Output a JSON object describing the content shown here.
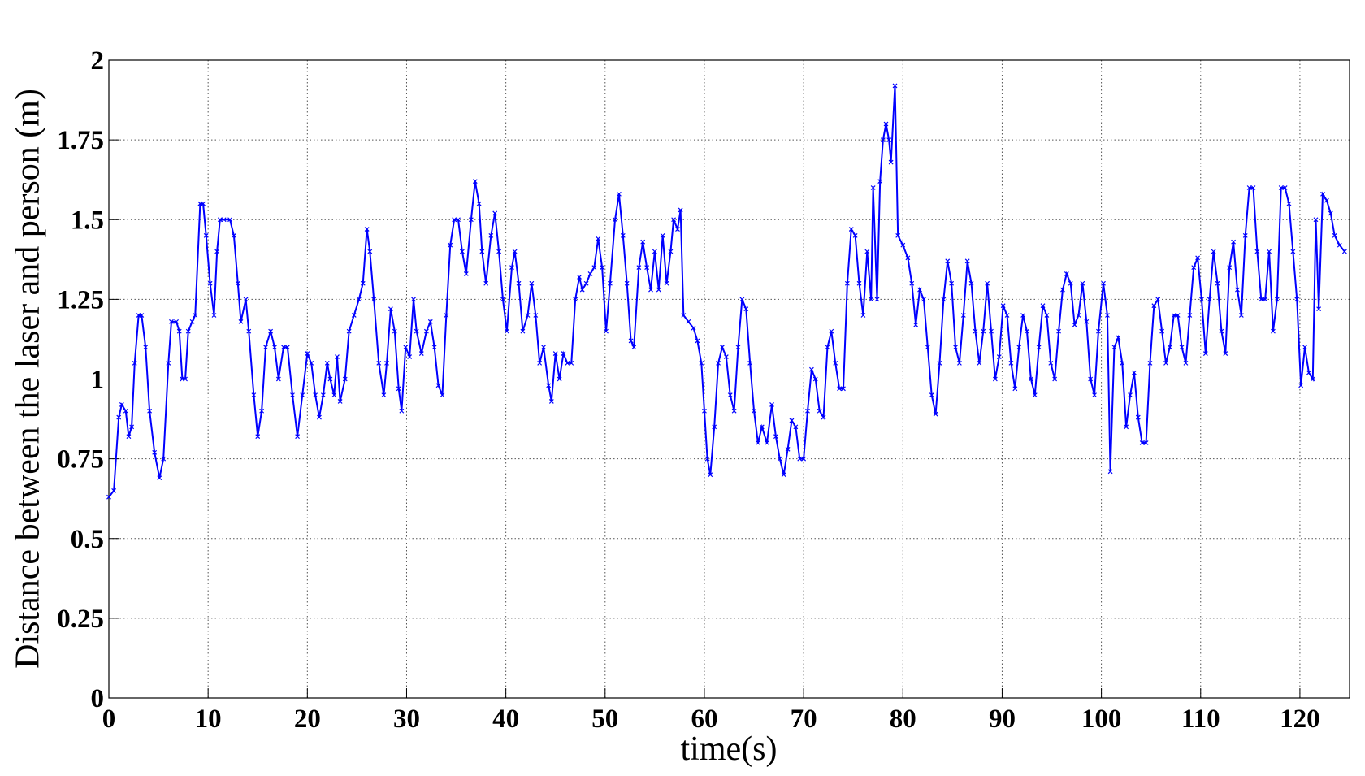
{
  "chart_data": {
    "type": "line",
    "x_label": "time(s)",
    "y_label": "Distance between the laser and person (m)",
    "xlim": [
      0,
      125
    ],
    "ylim": [
      0,
      2
    ],
    "xticks": [
      0,
      10,
      20,
      30,
      40,
      50,
      60,
      70,
      80,
      90,
      100,
      110,
      120
    ],
    "yticks": [
      0,
      0.25,
      0.5,
      0.75,
      1,
      1.25,
      1.5,
      1.75,
      2
    ],
    "grid": true,
    "series": [
      {
        "color": "#0000ff",
        "x": [
          0,
          0.5,
          1,
          1.3,
          1.7,
          2,
          2.3,
          2.6,
          3,
          3.3,
          3.7,
          4.1,
          4.6,
          5.1,
          5.5,
          6,
          6.3,
          6.8,
          7.1,
          7.4,
          7.7,
          8,
          8.4,
          8.7,
          9.2,
          9.5,
          9.8,
          10.2,
          10.6,
          10.9,
          11.2,
          11.6,
          12.2,
          12.6,
          13,
          13.3,
          13.8,
          14.1,
          14.6,
          15,
          15.4,
          15.8,
          16.3,
          16.7,
          17.1,
          17.6,
          18,
          18.5,
          19,
          19.5,
          20,
          20.4,
          20.8,
          21.2,
          21.6,
          22,
          22.3,
          22.7,
          23,
          23.3,
          23.8,
          24.2,
          24.7,
          25.2,
          25.6,
          26,
          26.3,
          26.7,
          27.2,
          27.7,
          28,
          28.4,
          28.8,
          29.2,
          29.5,
          29.9,
          30.3,
          30.7,
          31,
          31.5,
          32,
          32.4,
          32.8,
          33.2,
          33.6,
          34,
          34.4,
          34.8,
          35.2,
          35.6,
          36,
          36.5,
          36.9,
          37.3,
          37.6,
          38,
          38.5,
          38.9,
          39.3,
          39.7,
          40.1,
          40.6,
          40.9,
          41.3,
          41.7,
          42.2,
          42.6,
          43,
          43.4,
          43.8,
          44.3,
          44.6,
          45,
          45.4,
          45.8,
          46.2,
          46.6,
          47,
          47.4,
          47.7,
          48.1,
          48.5,
          48.9,
          49.3,
          49.7,
          50.1,
          50.5,
          51,
          51.4,
          51.8,
          52.2,
          52.6,
          52.9,
          53.4,
          53.8,
          54.2,
          54.6,
          55,
          55.4,
          55.8,
          56.2,
          56.6,
          56.9,
          57.3,
          57.6,
          57.9,
          58.4,
          58.9,
          59.3,
          59.7,
          60,
          60.3,
          60.6,
          61,
          61.4,
          61.8,
          62.2,
          62.6,
          63,
          63.4,
          63.8,
          64.2,
          64.6,
          65,
          65.4,
          65.8,
          66.3,
          66.8,
          67.2,
          67.6,
          68,
          68.4,
          68.8,
          69.2,
          69.6,
          70,
          70.4,
          70.8,
          71.2,
          71.6,
          72,
          72.4,
          72.8,
          73.2,
          73.6,
          74,
          74.4,
          74.8,
          75.2,
          75.6,
          76,
          76.4,
          76.8,
          77,
          77.4,
          77.7,
          78,
          78.3,
          78.6,
          78.8,
          79.2,
          79.5,
          80,
          80.5,
          80.9,
          81.3,
          81.7,
          82.1,
          82.5,
          82.9,
          83.3,
          83.7,
          84.1,
          84.5,
          84.9,
          85.3,
          85.7,
          86.1,
          86.5,
          86.9,
          87.3,
          87.7,
          88.1,
          88.5,
          88.9,
          89.3,
          89.7,
          90.1,
          90.5,
          90.9,
          91.3,
          91.7,
          92.1,
          92.5,
          92.9,
          93.3,
          93.7,
          94.1,
          94.5,
          94.9,
          95.3,
          95.7,
          96.1,
          96.5,
          96.9,
          97.3,
          97.7,
          98.1,
          98.5,
          98.9,
          99.3,
          99.7,
          100.2,
          100.6,
          100.9,
          101.3,
          101.7,
          102.1,
          102.5,
          102.9,
          103.3,
          103.7,
          104.1,
          104.5,
          104.9,
          105.3,
          105.7,
          106.1,
          106.5,
          106.9,
          107.3,
          107.7,
          108.1,
          108.5,
          108.9,
          109.3,
          109.7,
          110.1,
          110.5,
          110.9,
          111.3,
          111.7,
          112.1,
          112.5,
          112.9,
          113.3,
          113.7,
          114.1,
          114.5,
          114.9,
          115.3,
          115.7,
          116.1,
          116.5,
          116.9,
          117.3,
          117.7,
          118.1,
          118.5,
          118.9,
          119.3,
          119.7,
          120.1,
          120.5,
          120.9,
          121.3,
          121.6,
          121.9,
          122.3,
          122.7,
          123.1,
          123.5,
          124,
          124.5
        ],
        "values": [
          0.63,
          0.65,
          0.88,
          0.92,
          0.9,
          0.82,
          0.85,
          1.05,
          1.2,
          1.2,
          1.1,
          0.9,
          0.77,
          0.69,
          0.75,
          1.05,
          1.18,
          1.18,
          1.15,
          1.0,
          1.0,
          1.15,
          1.18,
          1.2,
          1.55,
          1.55,
          1.45,
          1.3,
          1.2,
          1.4,
          1.5,
          1.5,
          1.5,
          1.45,
          1.3,
          1.18,
          1.25,
          1.15,
          0.95,
          0.82,
          0.9,
          1.1,
          1.15,
          1.1,
          1.0,
          1.1,
          1.1,
          0.95,
          0.82,
          0.95,
          1.08,
          1.05,
          0.95,
          0.88,
          0.95,
          1.05,
          1.0,
          0.95,
          1.07,
          0.93,
          1.0,
          1.15,
          1.2,
          1.25,
          1.3,
          1.47,
          1.4,
          1.25,
          1.05,
          0.95,
          1.05,
          1.22,
          1.15,
          0.97,
          0.9,
          1.1,
          1.07,
          1.25,
          1.15,
          1.08,
          1.15,
          1.18,
          1.1,
          0.98,
          0.95,
          1.2,
          1.42,
          1.5,
          1.5,
          1.4,
          1.33,
          1.5,
          1.62,
          1.55,
          1.4,
          1.3,
          1.45,
          1.52,
          1.4,
          1.25,
          1.15,
          1.35,
          1.4,
          1.3,
          1.15,
          1.2,
          1.3,
          1.2,
          1.05,
          1.1,
          0.98,
          0.93,
          1.08,
          1.0,
          1.08,
          1.05,
          1.05,
          1.25,
          1.32,
          1.28,
          1.3,
          1.33,
          1.35,
          1.44,
          1.35,
          1.15,
          1.3,
          1.5,
          1.58,
          1.45,
          1.3,
          1.12,
          1.1,
          1.35,
          1.43,
          1.35,
          1.28,
          1.4,
          1.28,
          1.45,
          1.3,
          1.4,
          1.5,
          1.47,
          1.53,
          1.2,
          1.18,
          1.16,
          1.12,
          1.05,
          0.9,
          0.75,
          0.7,
          0.85,
          1.05,
          1.1,
          1.07,
          0.95,
          0.9,
          1.1,
          1.25,
          1.22,
          1.05,
          0.9,
          0.8,
          0.85,
          0.8,
          0.92,
          0.82,
          0.75,
          0.7,
          0.78,
          0.87,
          0.85,
          0.75,
          0.75,
          0.9,
          1.03,
          1.0,
          0.9,
          0.88,
          1.1,
          1.15,
          1.05,
          0.97,
          0.97,
          1.3,
          1.47,
          1.45,
          1.3,
          1.2,
          1.4,
          1.25,
          1.6,
          1.25,
          1.62,
          1.75,
          1.8,
          1.75,
          1.68,
          1.92,
          1.45,
          1.42,
          1.38,
          1.3,
          1.17,
          1.28,
          1.25,
          1.1,
          0.95,
          0.89,
          1.05,
          1.25,
          1.37,
          1.3,
          1.1,
          1.05,
          1.2,
          1.37,
          1.3,
          1.15,
          1.05,
          1.15,
          1.3,
          1.15,
          1.0,
          1.07,
          1.23,
          1.2,
          1.05,
          0.97,
          1.1,
          1.2,
          1.15,
          1.0,
          0.95,
          1.1,
          1.23,
          1.2,
          1.05,
          1.0,
          1.15,
          1.28,
          1.33,
          1.3,
          1.17,
          1.2,
          1.3,
          1.18,
          1.0,
          0.95,
          1.15,
          1.3,
          1.2,
          0.71,
          1.1,
          1.13,
          1.05,
          0.85,
          0.95,
          1.02,
          0.88,
          0.8,
          0.8,
          1.05,
          1.23,
          1.25,
          1.15,
          1.05,
          1.1,
          1.2,
          1.2,
          1.1,
          1.05,
          1.2,
          1.35,
          1.38,
          1.25,
          1.08,
          1.25,
          1.4,
          1.3,
          1.15,
          1.08,
          1.35,
          1.43,
          1.28,
          1.2,
          1.45,
          1.6,
          1.6,
          1.4,
          1.25,
          1.25,
          1.4,
          1.15,
          1.25,
          1.6,
          1.6,
          1.55,
          1.4,
          1.25,
          0.98,
          1.1,
          1.02,
          1.0,
          1.5,
          1.22,
          1.58,
          1.56,
          1.52,
          1.45,
          1.42,
          1.4
        ]
      }
    ]
  }
}
